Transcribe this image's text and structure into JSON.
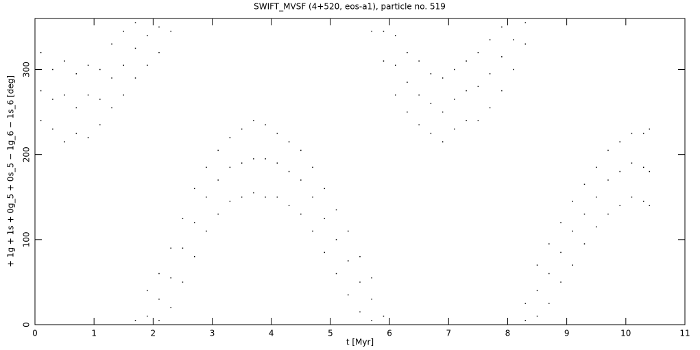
{
  "chart_data": {
    "type": "scatter",
    "title": "SWIFT_MVSF (4+520, eos-a1), particle no. 519",
    "x_label": "t [Myr]",
    "y_label": "+ 1g + 1s + 0g_5 + 0s_5 − 1g_6 − 1s_6 [deg]",
    "xlim": [
      0,
      11
    ],
    "ylim": [
      0,
      360
    ],
    "xticks": [
      0,
      1,
      2,
      3,
      4,
      5,
      6,
      7,
      8,
      9,
      10,
      11
    ],
    "yticks": [
      0,
      100,
      200,
      300
    ],
    "color": "#000000",
    "x": [
      0.1,
      0.1,
      0.1,
      0.3,
      0.3,
      0.3,
      0.5,
      0.5,
      0.5,
      0.7,
      0.7,
      0.7,
      0.9,
      0.9,
      0.9,
      1.1,
      1.1,
      1.1,
      1.3,
      1.3,
      1.3,
      1.5,
      1.5,
      1.5,
      1.7,
      1.7,
      1.7,
      1.9,
      1.9,
      2.1,
      2.1,
      2.3,
      1.7,
      1.9,
      1.9,
      2.1,
      2.1,
      2.1,
      2.3,
      2.3,
      2.3,
      2.5,
      2.5,
      2.5,
      2.7,
      2.7,
      2.7,
      2.9,
      2.9,
      2.9,
      3.1,
      3.1,
      3.1,
      3.3,
      3.3,
      3.3,
      3.5,
      3.5,
      3.5,
      3.7,
      3.7,
      3.7,
      3.9,
      3.9,
      3.9,
      4.1,
      4.1,
      4.1,
      4.3,
      4.3,
      4.3,
      4.5,
      4.5,
      4.5,
      4.7,
      4.7,
      4.7,
      4.9,
      4.9,
      4.9,
      5.1,
      5.1,
      5.1,
      5.3,
      5.3,
      5.3,
      5.5,
      5.5,
      5.5,
      5.7,
      5.7,
      5.7,
      5.9,
      5.7,
      5.9,
      5.9,
      6.1,
      6.1,
      6.1,
      6.3,
      6.3,
      6.3,
      6.5,
      6.5,
      6.5,
      6.7,
      6.7,
      6.7,
      6.9,
      6.9,
      6.9,
      7.1,
      7.1,
      7.1,
      7.3,
      7.3,
      7.3,
      7.5,
      7.5,
      7.5,
      7.7,
      7.7,
      7.7,
      7.9,
      7.9,
      7.9,
      8.1,
      8.1,
      8.3,
      8.3,
      8.3,
      8.3,
      8.5,
      8.5,
      8.5,
      8.7,
      8.7,
      8.7,
      8.9,
      8.9,
      8.9,
      9.1,
      9.1,
      9.1,
      9.3,
      9.3,
      9.3,
      9.5,
      9.5,
      9.5,
      9.7,
      9.7,
      9.7,
      9.9,
      9.9,
      9.9,
      10.1,
      10.1,
      10.1,
      10.3,
      10.3,
      10.3,
      10.4,
      10.4,
      10.4
    ],
    "y": [
      240,
      275,
      320,
      230,
      265,
      300,
      215,
      270,
      310,
      225,
      255,
      295,
      220,
      270,
      305,
      235,
      265,
      300,
      255,
      290,
      330,
      270,
      305,
      345,
      290,
      325,
      355,
      305,
      340,
      320,
      350,
      345,
      5,
      10,
      40,
      5,
      30,
      60,
      20,
      55,
      90,
      50,
      90,
      125,
      80,
      120,
      160,
      110,
      150,
      185,
      130,
      170,
      205,
      145,
      185,
      220,
      150,
      190,
      230,
      155,
      195,
      240,
      150,
      195,
      235,
      150,
      190,
      225,
      140,
      180,
      215,
      130,
      170,
      205,
      110,
      150,
      185,
      85,
      125,
      160,
      60,
      100,
      135,
      35,
      75,
      110,
      15,
      50,
      80,
      5,
      30,
      55,
      10,
      345,
      310,
      345,
      270,
      305,
      340,
      250,
      285,
      320,
      235,
      270,
      310,
      225,
      260,
      295,
      215,
      250,
      290,
      230,
      265,
      300,
      240,
      275,
      310,
      240,
      280,
      320,
      255,
      295,
      335,
      275,
      315,
      350,
      300,
      335,
      330,
      355,
      5,
      25,
      10,
      40,
      70,
      25,
      60,
      95,
      50,
      85,
      120,
      70,
      110,
      145,
      95,
      130,
      165,
      115,
      150,
      185,
      130,
      170,
      205,
      140,
      180,
      215,
      150,
      190,
      225,
      145,
      185,
      225,
      140,
      180,
      230
    ]
  }
}
